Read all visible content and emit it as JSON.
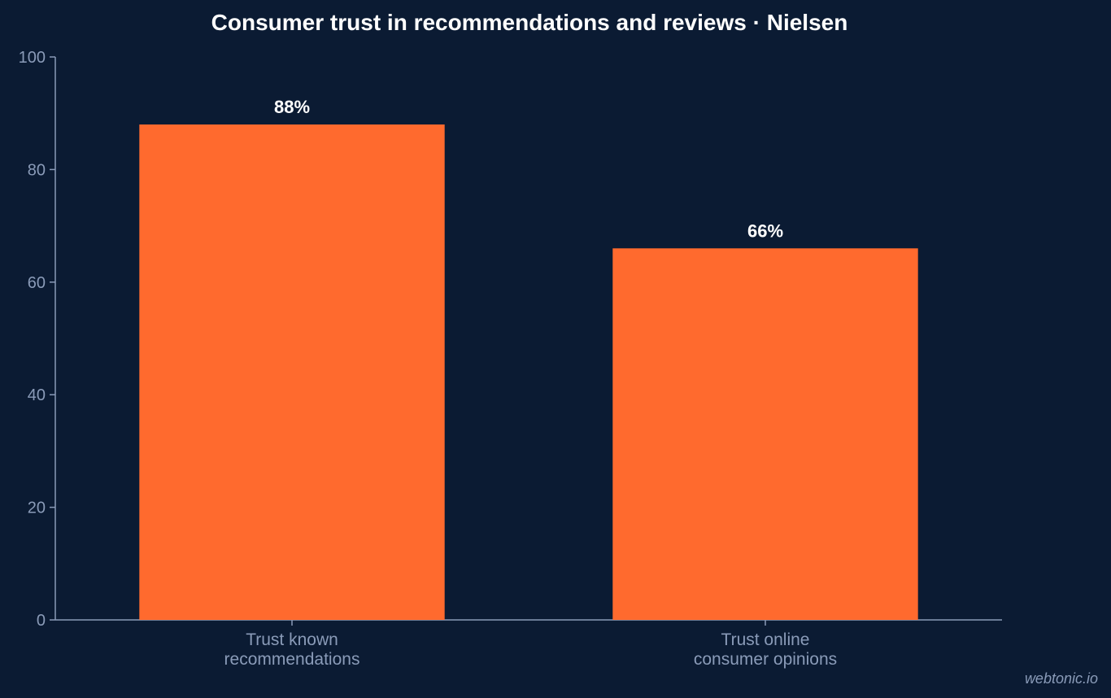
{
  "chart_data": {
    "type": "bar",
    "title": "Consumer trust in recommendations and reviews · Nielsen",
    "xlabel": "",
    "ylabel": "",
    "categories": [
      [
        "Trust known",
        "recommendations"
      ],
      [
        "Trust online",
        "consumer opinions"
      ]
    ],
    "values": [
      88,
      66
    ],
    "data_labels": [
      "88%",
      "66%"
    ],
    "ylim": [
      0,
      100
    ],
    "yticks": [
      0,
      20,
      40,
      60,
      80,
      100
    ],
    "grid": false,
    "legend": "none"
  },
  "watermark": "webtonic.io",
  "colors": {
    "background": "#0b1b33",
    "bar": "#ff6a2e",
    "axis": "#8a9bb8",
    "tick_text": "#8a9bb8",
    "category_text": "#8a9bb8",
    "title_text": "#ffffff",
    "data_label_text": "#ffffff",
    "watermark_text": "#8a9bb8"
  }
}
